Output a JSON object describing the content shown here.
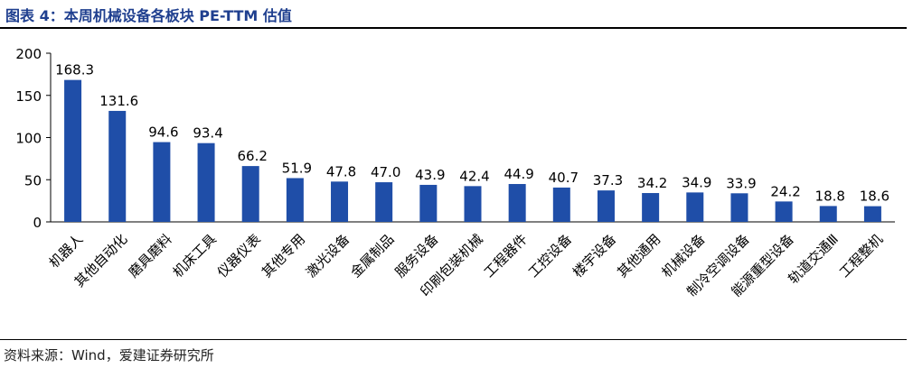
{
  "figure": {
    "title": "图表 4：本周机械设备各板块 PE-TTM 估值",
    "source": "资料来源：Wind，爱建证券研究所"
  },
  "chart_data": {
    "type": "bar",
    "title": "图表 4：本周机械设备各板块 PE-TTM 估值",
    "xlabel": "",
    "ylabel": "",
    "ylim": [
      0,
      200
    ],
    "yticks": [
      0,
      50,
      100,
      150,
      200
    ],
    "grid": false,
    "bar_color": "#1f4ea8",
    "categories": [
      "机器人",
      "其他自动化",
      "磨具磨料",
      "机床工具",
      "仪器仪表",
      "其他专用",
      "激光设备",
      "金属制品",
      "服务设备",
      "印刷包装机械",
      "工程器件",
      "工控设备",
      "楼宇设备",
      "其他通用",
      "机械设备",
      "制冷空调设备",
      "能源重型设备",
      "轨道交通Ⅲ",
      "工程整机"
    ],
    "values": [
      168.3,
      131.6,
      94.6,
      93.4,
      66.2,
      51.9,
      47.8,
      47.0,
      43.9,
      42.4,
      44.9,
      40.7,
      37.3,
      34.2,
      34.9,
      33.9,
      24.2,
      18.8,
      18.6
    ],
    "labels": [
      "168.3",
      "131.6",
      "94.6",
      "93.4",
      "66.2",
      "51.9",
      "47.8",
      "47.0",
      "43.9",
      "42.4",
      "44.9",
      "40.7",
      "37.3",
      "34.2",
      "34.9",
      "33.9",
      "24.2",
      "18.8",
      "18.6"
    ]
  }
}
